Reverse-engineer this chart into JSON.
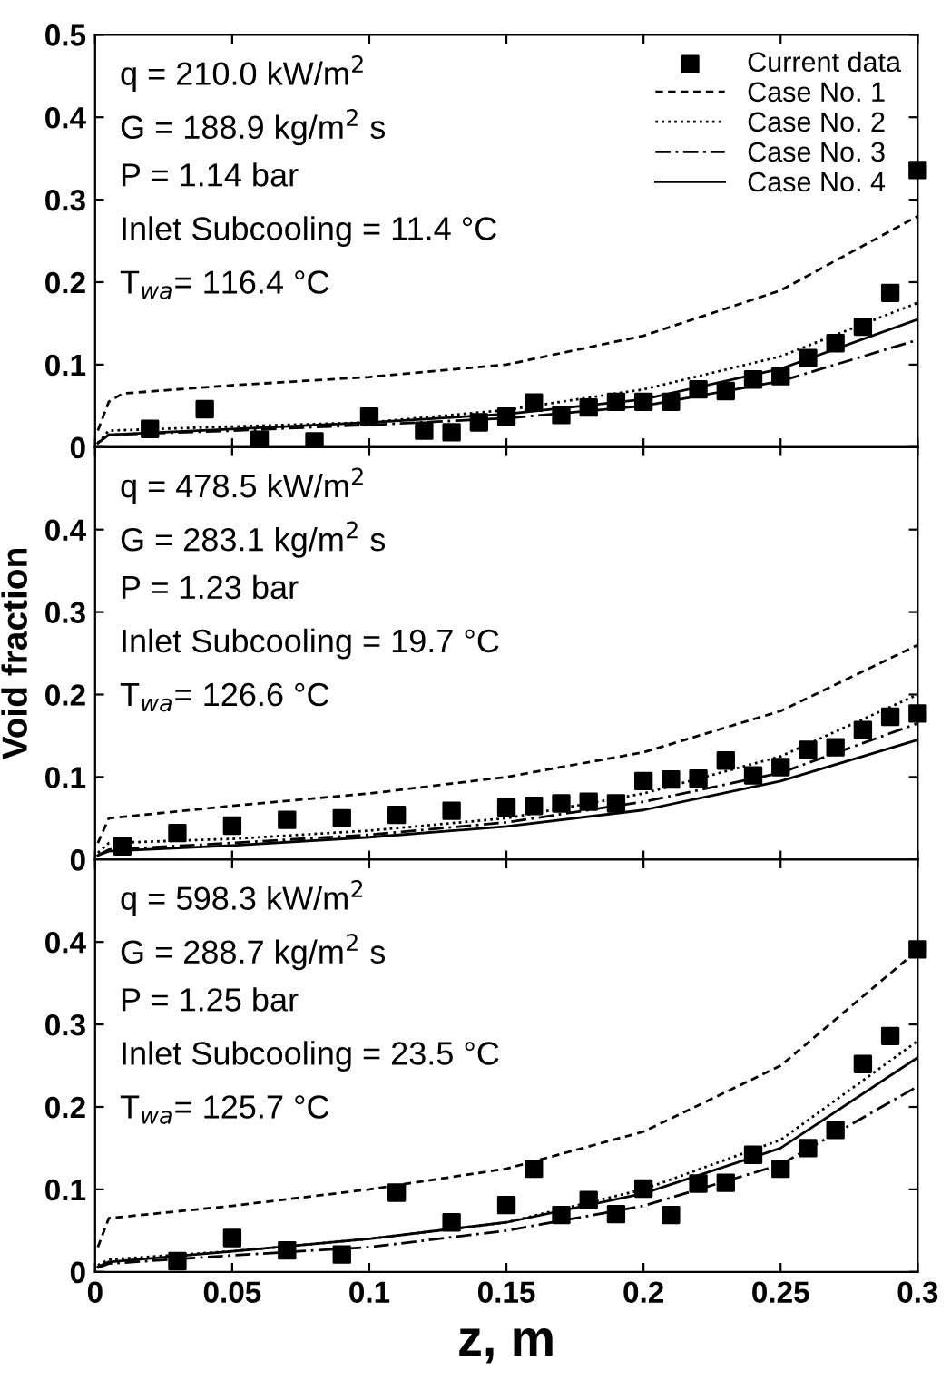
{
  "chart_data": [
    {
      "type": "scatter",
      "xlim": [
        0,
        0.3
      ],
      "ylim": [
        0,
        0.5
      ],
      "yticks": [
        0,
        0.1,
        0.2,
        0.3,
        0.4,
        0.5
      ],
      "xticks": [
        0,
        0.05,
        0.1,
        0.15,
        0.2,
        0.25,
        0.3
      ],
      "tick_labels": "y",
      "legend": "top right",
      "grid": false,
      "annotations": [
        "q = 210.0 kW/m$^{2}$",
        "G = 188.9 kg/m$^{2}$ s",
        "P = 1.14 bar",
        "Inlet Subcooling = 11.4 °C",
        "T$_{wa}$= 116.4 °C"
      ],
      "series": [
        {
          "name": "Current data",
          "marker": "square",
          "color": "#000000",
          "x": [
            0.02,
            0.04,
            0.06,
            0.08,
            0.1,
            0.12,
            0.13,
            0.14,
            0.15,
            0.16,
            0.17,
            0.18,
            0.19,
            0.2,
            0.21,
            0.22,
            0.23,
            0.24,
            0.25,
            0.26,
            0.27,
            0.28,
            0.29,
            0.3
          ],
          "values": [
            0.022,
            0.046,
            0.009,
            0.007,
            0.037,
            0.02,
            0.018,
            0.03,
            0.037,
            0.054,
            0.039,
            0.048,
            0.055,
            0.055,
            0.055,
            0.07,
            0.068,
            0.082,
            0.086,
            0.108,
            0.126,
            0.146,
            0.187,
            0.336
          ]
        },
        {
          "name": "Case No. 1",
          "type": "line",
          "line_style": "dashed",
          "color": "#000000",
          "x": [
            0.001,
            0.005,
            0.01,
            0.05,
            0.1,
            0.15,
            0.2,
            0.25,
            0.3
          ],
          "values": [
            0.02,
            0.055,
            0.065,
            0.075,
            0.085,
            0.1,
            0.135,
            0.19,
            0.28
          ]
        },
        {
          "name": "Case No. 2",
          "type": "line",
          "line_style": "dotted",
          "color": "#000000",
          "x": [
            0.001,
            0.005,
            0.05,
            0.1,
            0.15,
            0.2,
            0.25,
            0.3
          ],
          "values": [
            0.005,
            0.02,
            0.025,
            0.03,
            0.045,
            0.07,
            0.11,
            0.175
          ]
        },
        {
          "name": "Case No. 3",
          "type": "line",
          "line_style": "dashdot",
          "color": "#000000",
          "x": [
            0.001,
            0.005,
            0.05,
            0.1,
            0.15,
            0.2,
            0.25,
            0.3
          ],
          "values": [
            0.005,
            0.015,
            0.02,
            0.027,
            0.035,
            0.05,
            0.08,
            0.13
          ]
        },
        {
          "name": "Case No. 4",
          "type": "line",
          "line_style": "solid",
          "color": "#000000",
          "x": [
            0.001,
            0.005,
            0.05,
            0.1,
            0.15,
            0.2,
            0.25,
            0.3
          ],
          "values": [
            0.005,
            0.015,
            0.022,
            0.03,
            0.04,
            0.058,
            0.095,
            0.155
          ]
        }
      ]
    },
    {
      "type": "scatter",
      "xlim": [
        0,
        0.3
      ],
      "ylim": [
        0,
        0.5
      ],
      "yticks": [
        0,
        0.1,
        0.2,
        0.3,
        0.4
      ],
      "xticks": [
        0,
        0.05,
        0.1,
        0.15,
        0.2,
        0.25,
        0.3
      ],
      "tick_labels": "y",
      "ylabel": "Void fraction",
      "grid": false,
      "annotations": [
        "q = 478.5 kW/m$^{2}$",
        "G = 283.1 kg/m$^{2}$ s",
        "P = 1.23 bar",
        "Inlet Subcooling = 19.7 °C",
        "T$_{wa}$= 126.6 °C"
      ],
      "series": [
        {
          "marker": "square",
          "color": "#000000",
          "x": [
            0.01,
            0.03,
            0.05,
            0.07,
            0.09,
            0.11,
            0.13,
            0.15,
            0.16,
            0.17,
            0.18,
            0.19,
            0.2,
            0.21,
            0.22,
            0.23,
            0.24,
            0.25,
            0.26,
            0.27,
            0.28,
            0.29,
            0.3
          ],
          "values": [
            0.016,
            0.032,
            0.041,
            0.048,
            0.05,
            0.054,
            0.059,
            0.063,
            0.065,
            0.068,
            0.07,
            0.068,
            0.095,
            0.097,
            0.098,
            0.12,
            0.102,
            0.112,
            0.133,
            0.136,
            0.157,
            0.173,
            0.177
          ]
        },
        {
          "type": "line",
          "line_style": "dashed",
          "color": "#000000",
          "x": [
            0.001,
            0.005,
            0.05,
            0.1,
            0.15,
            0.2,
            0.25,
            0.3
          ],
          "values": [
            0.02,
            0.05,
            0.065,
            0.08,
            0.1,
            0.13,
            0.18,
            0.26
          ]
        },
        {
          "type": "line",
          "line_style": "dotted",
          "color": "#000000",
          "x": [
            0.001,
            0.005,
            0.05,
            0.1,
            0.15,
            0.2,
            0.25,
            0.3
          ],
          "values": [
            0.008,
            0.02,
            0.025,
            0.035,
            0.05,
            0.08,
            0.125,
            0.2
          ]
        },
        {
          "type": "line",
          "line_style": "dashdot",
          "color": "#000000",
          "x": [
            0.001,
            0.005,
            0.05,
            0.1,
            0.15,
            0.2,
            0.25,
            0.3
          ],
          "values": [
            0.005,
            0.012,
            0.02,
            0.03,
            0.045,
            0.07,
            0.105,
            0.165
          ]
        },
        {
          "type": "line",
          "line_style": "solid",
          "color": "#000000",
          "x": [
            0.001,
            0.005,
            0.05,
            0.1,
            0.15,
            0.2,
            0.25,
            0.3
          ],
          "values": [
            0.005,
            0.01,
            0.017,
            0.027,
            0.04,
            0.06,
            0.095,
            0.145
          ]
        }
      ]
    },
    {
      "type": "scatter",
      "xlim": [
        0,
        0.3
      ],
      "ylim": [
        0,
        0.5
      ],
      "yticks": [
        0,
        0.1,
        0.2,
        0.3,
        0.4
      ],
      "xticks": [
        0,
        0.05,
        0.1,
        0.15,
        0.2,
        0.25,
        0.3
      ],
      "xlabel": "z, m",
      "grid": false,
      "annotations": [
        "q = 598.3 kW/m$^{2}$",
        "G = 288.7 kg/m$^{2}$ s",
        "P = 1.25 bar",
        "Inlet Subcooling = 23.5 °C",
        "T$_{wa}$= 125.7 °C"
      ],
      "series": [
        {
          "marker": "square",
          "color": "#000000",
          "x": [
            0.03,
            0.05,
            0.07,
            0.09,
            0.11,
            0.13,
            0.15,
            0.16,
            0.17,
            0.18,
            0.19,
            0.2,
            0.21,
            0.22,
            0.23,
            0.24,
            0.25,
            0.26,
            0.27,
            0.28,
            0.29,
            0.3
          ],
          "values": [
            0.013,
            0.041,
            0.026,
            0.021,
            0.096,
            0.06,
            0.081,
            0.125,
            0.069,
            0.087,
            0.07,
            0.101,
            0.069,
            0.107,
            0.108,
            0.142,
            0.125,
            0.15,
            0.172,
            0.252,
            0.286,
            0.391
          ]
        },
        {
          "type": "line",
          "line_style": "dashed",
          "color": "#000000",
          "x": [
            0.001,
            0.005,
            0.05,
            0.1,
            0.15,
            0.2,
            0.25,
            0.3
          ],
          "values": [
            0.03,
            0.065,
            0.08,
            0.1,
            0.125,
            0.17,
            0.25,
            0.39
          ]
        },
        {
          "type": "line",
          "line_style": "dotted",
          "color": "#000000",
          "x": [
            0.001,
            0.005,
            0.05,
            0.1,
            0.15,
            0.2,
            0.25,
            0.3
          ],
          "values": [
            0.008,
            0.015,
            0.025,
            0.04,
            0.06,
            0.1,
            0.16,
            0.28
          ]
        },
        {
          "type": "line",
          "line_style": "dashdot",
          "color": "#000000",
          "x": [
            0.001,
            0.005,
            0.05,
            0.1,
            0.15,
            0.2,
            0.25,
            0.3
          ],
          "values": [
            0.005,
            0.01,
            0.02,
            0.03,
            0.05,
            0.08,
            0.13,
            0.225
          ]
        },
        {
          "type": "line",
          "line_style": "solid",
          "color": "#000000",
          "x": [
            0.001,
            0.005,
            0.05,
            0.1,
            0.15,
            0.2,
            0.25,
            0.3
          ],
          "values": [
            0.006,
            0.012,
            0.025,
            0.04,
            0.06,
            0.095,
            0.15,
            0.26
          ]
        }
      ]
    }
  ]
}
